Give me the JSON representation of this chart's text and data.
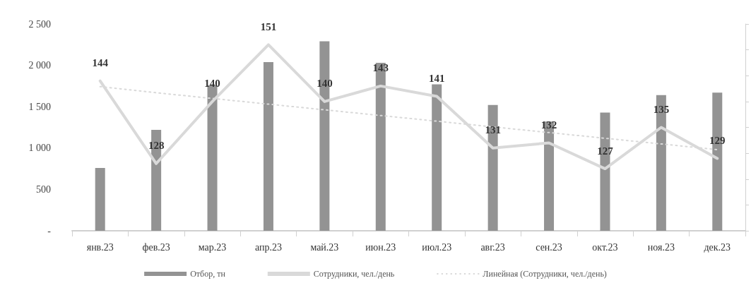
{
  "chart_data": {
    "type": "bar",
    "categories": [
      "янв.23",
      "фев.23",
      "мар.23",
      "апр.23",
      "май.23",
      "июн.23",
      "июл.23",
      "авг.23",
      "сен.23",
      "окт.23",
      "ноя.23",
      "дек.23"
    ],
    "series": [
      {
        "name": "Отбор, тн",
        "color": "#939393",
        "values": [
          760,
          1220,
          1760,
          2040,
          2290,
          2030,
          1770,
          1520,
          1320,
          1430,
          1640,
          1670
        ]
      },
      {
        "name": "Сотрудники, чел./день",
        "type": "line",
        "axis": "y2",
        "color": "#d9d9d9",
        "data_labels": true,
        "values": [
          144,
          128,
          140,
          151,
          140,
          143,
          141,
          131,
          132,
          127,
          135,
          129
        ]
      },
      {
        "name": "Линейная (Сотрудники, чел./день)",
        "type": "line",
        "axis": "y2",
        "color": "#d9d9d9",
        "line_style": "dotted",
        "values": [
          142.9,
          141.7,
          140.6,
          139.5,
          138.4,
          137.3,
          136.2,
          135.1,
          134.0,
          132.9,
          131.8,
          130.7
        ]
      }
    ],
    "ylim": [
      0,
      2500
    ],
    "yticks": [
      {
        "value": 0,
        "label": "-"
      },
      {
        "value": 500,
        "label": "500"
      },
      {
        "value": 1000,
        "label": "1 000"
      },
      {
        "value": 1500,
        "label": "1 500"
      },
      {
        "value": 2000,
        "label": "2 000"
      },
      {
        "value": 2500,
        "label": "2 500"
      }
    ],
    "y2lim": [
      115,
      155
    ],
    "y2ticks": [
      {
        "value": 115,
        "label": null
      },
      {
        "value": 120,
        "label": null
      },
      {
        "value": 125,
        "label": null
      },
      {
        "value": 130,
        "label": null
      },
      {
        "value": 135,
        "label": null
      },
      {
        "value": 140,
        "label": null
      },
      {
        "value": 145,
        "label": null
      },
      {
        "value": 150,
        "label": null
      },
      {
        "value": 155,
        "label": null
      }
    ],
    "grid": false,
    "legend": "bottom",
    "marker": "none"
  }
}
